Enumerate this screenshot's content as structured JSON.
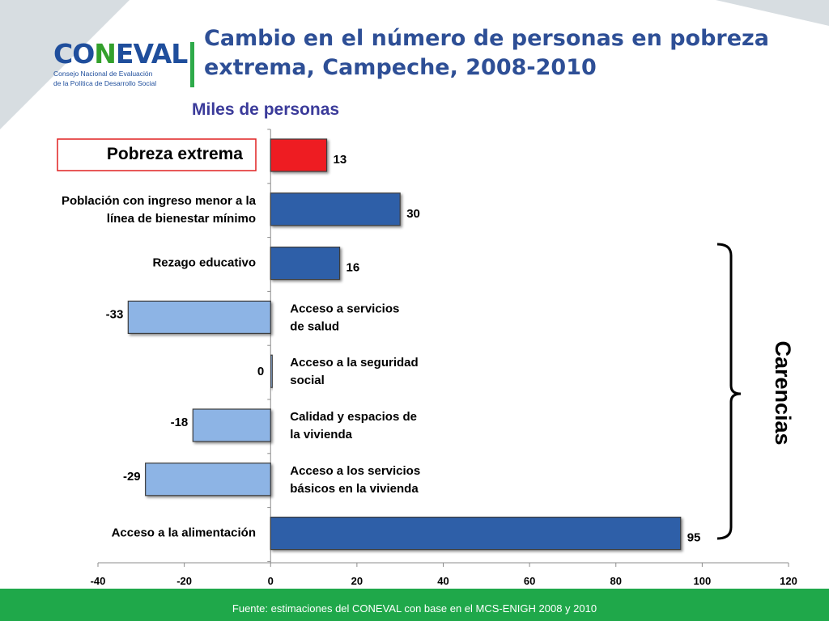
{
  "header": {
    "logo_text_a": "CO",
    "logo_text_n": "N",
    "logo_text_b": "EVAL",
    "logo_sub_1": "Consejo Nacional de Evaluación",
    "logo_sub_2": "de la Política de Desarrollo Social",
    "title": "Cambio en el número de personas en pobreza extrema, Campeche, 2008-2010"
  },
  "chart_data": {
    "type": "bar",
    "orientation": "horizontal",
    "title": "Cambio en el número de personas en pobreza extrema, Campeche, 2008-2010",
    "subtitle": "Miles de personas",
    "categories": [
      "Pobreza extrema",
      "Población con ingreso menor a la línea de bienestar mínimo",
      "Rezago educativo",
      "Acceso a servicios de salud",
      "Acceso a la seguridad social",
      "Calidad y espacios de la vivienda",
      "Acceso a los servicios básicos en la vivienda",
      "Acceso a la alimentación"
    ],
    "category_label_lines": [
      [
        "Pobreza extrema"
      ],
      [
        "Población con ingreso menor a la",
        "línea de bienestar mínimo"
      ],
      [
        "Rezago educativo"
      ],
      [
        "Acceso a servicios",
        " de salud"
      ],
      [
        "Acceso a  la seguridad",
        "social"
      ],
      [
        "Calidad y espacios de",
        "la vivienda"
      ],
      [
        "Acceso a los servicios",
        "básicos en la vivienda"
      ],
      [
        "Acceso a la alimentación"
      ]
    ],
    "values": [
      13,
      30,
      16,
      -33,
      0,
      -18,
      -29,
      95
    ],
    "value_labels": [
      "13",
      "30",
      "16",
      "-33",
      "0",
      "-18",
      "-29",
      "95"
    ],
    "bar_colors": [
      "#ee1c24",
      "#2f5fa8",
      "#2f5fa8",
      "#8db4e5",
      "#8db4e5",
      "#8db4e5",
      "#8db4e5",
      "#2f5fa8"
    ],
    "xlim": [
      -40,
      120
    ],
    "xticks": [
      -40,
      -20,
      0,
      20,
      40,
      60,
      80,
      100,
      120
    ],
    "xtick_labels": [
      "-40",
      "-20",
      "0",
      "20",
      "40",
      "60",
      "80",
      "100",
      "120"
    ],
    "highlight_category": "Pobreza extrema",
    "highlight_color": "#e02020",
    "bracket_label": "Carencias",
    "grid": false
  },
  "footer": {
    "source": "Fuente: estimaciones del CONEVAL con base en el MCS-ENIGH 2008 y 2010"
  }
}
